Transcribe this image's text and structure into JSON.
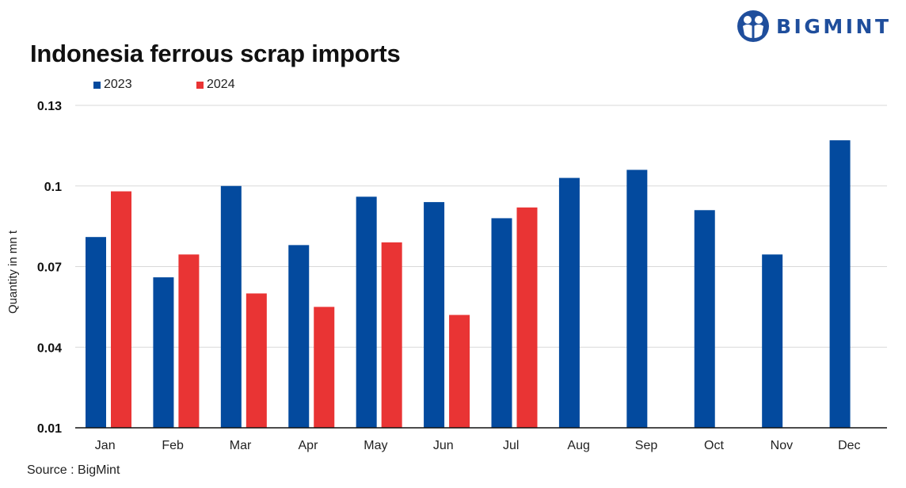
{
  "colors": {
    "series2023": "#034a9e",
    "series2024": "#e93434",
    "grid": "#d9d9d9",
    "axis": "#111111",
    "brand": "#1f4e9c"
  },
  "logo": {
    "text": "BIGMINT",
    "icon": "bigmint-people-icon"
  },
  "source": "Source : BigMint",
  "chart_data": {
    "type": "bar",
    "title": "Indonesia ferrous scrap imports",
    "ylabel": "Quantity in mn t",
    "xlabel": "",
    "ylim": [
      0.01,
      0.13
    ],
    "yticks": [
      "0.01",
      "0.04",
      "0.07",
      "0.1",
      "0.13"
    ],
    "grid": true,
    "legend_position": "top-left",
    "categories": [
      "Jan",
      "Feb",
      "Mar",
      "Apr",
      "May",
      "Jun",
      "Jul",
      "Aug",
      "Sep",
      "Oct",
      "Nov",
      "Dec"
    ],
    "series": [
      {
        "name": "2023",
        "values": [
          0.081,
          0.066,
          0.1,
          0.078,
          0.096,
          0.094,
          0.088,
          0.103,
          0.106,
          0.091,
          0.0745,
          0.117
        ]
      },
      {
        "name": "2024",
        "values": [
          0.098,
          0.0745,
          0.06,
          0.055,
          0.079,
          0.052,
          0.092,
          null,
          null,
          null,
          null,
          null
        ]
      }
    ]
  }
}
